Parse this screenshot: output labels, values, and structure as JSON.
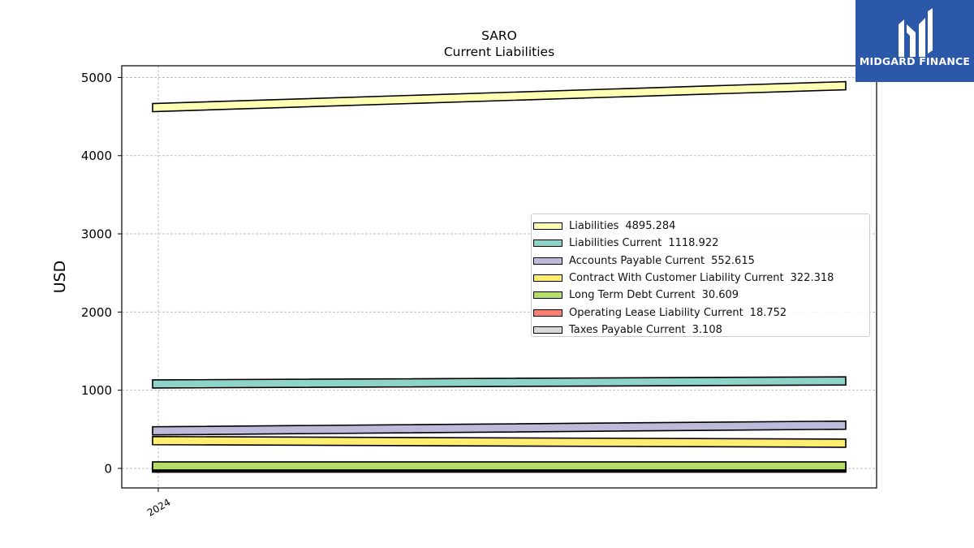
{
  "header": {
    "title": "SARO",
    "subtitle": "Current  Liabilities"
  },
  "logo": {
    "text": "MIDGARD FINANCE",
    "bg_color": "#2b58a8",
    "icon": "midgard-m-icon"
  },
  "chart_data": {
    "type": "line",
    "title": "SARO",
    "subtitle": "Current  Liabilities",
    "xlabel": "",
    "ylabel": "USD",
    "x": [
      "2024"
    ],
    "yticks": [
      0,
      1000,
      2000,
      3000,
      4000,
      5000
    ],
    "ylim": [
      -250,
      5150
    ],
    "grid": true,
    "legend_position": "center-right",
    "series": [
      {
        "name": "Liabilities",
        "value_label": "4895.284",
        "color": "#ffffb3",
        "start": 4615,
        "end": 4895
      },
      {
        "name": "Liabilities Current",
        "value_label": "1118.922",
        "color": "#8dd3c7",
        "start": 1080,
        "end": 1119
      },
      {
        "name": "Accounts Payable Current",
        "value_label": "552.615",
        "color": "#bebada",
        "start": 480,
        "end": 553
      },
      {
        "name": "Contract With Customer Liability Current",
        "value_label": "322.318",
        "color": "#ffed6f",
        "start": 355,
        "end": 322
      },
      {
        "name": "Long Term Debt Current",
        "value_label": "30.609",
        "color": "#b3de69",
        "start": 31,
        "end": 31
      },
      {
        "name": "Operating Lease Liability Current",
        "value_label": "18.752",
        "color": "#fb8072",
        "start": 19,
        "end": 19
      },
      {
        "name": "Taxes Payable Current",
        "value_label": "3.108",
        "color": "#d9d9d9",
        "start": 3,
        "end": 3
      }
    ]
  }
}
